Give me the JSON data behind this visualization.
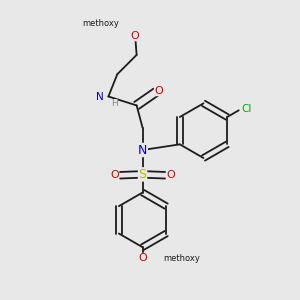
{
  "background_color": "#e8e8e8",
  "bond_color": "#1c1c1c",
  "atom_colors": {
    "O": "#dd0000",
    "N": "#0000dd",
    "S": "#bbbb00",
    "Cl": "#00aa00",
    "C": "#1c1c1c",
    "H": "#888888"
  },
  "figsize": [
    3.0,
    3.0
  ],
  "dpi": 100,
  "bond_lw": 1.3,
  "font_size": 7.5
}
